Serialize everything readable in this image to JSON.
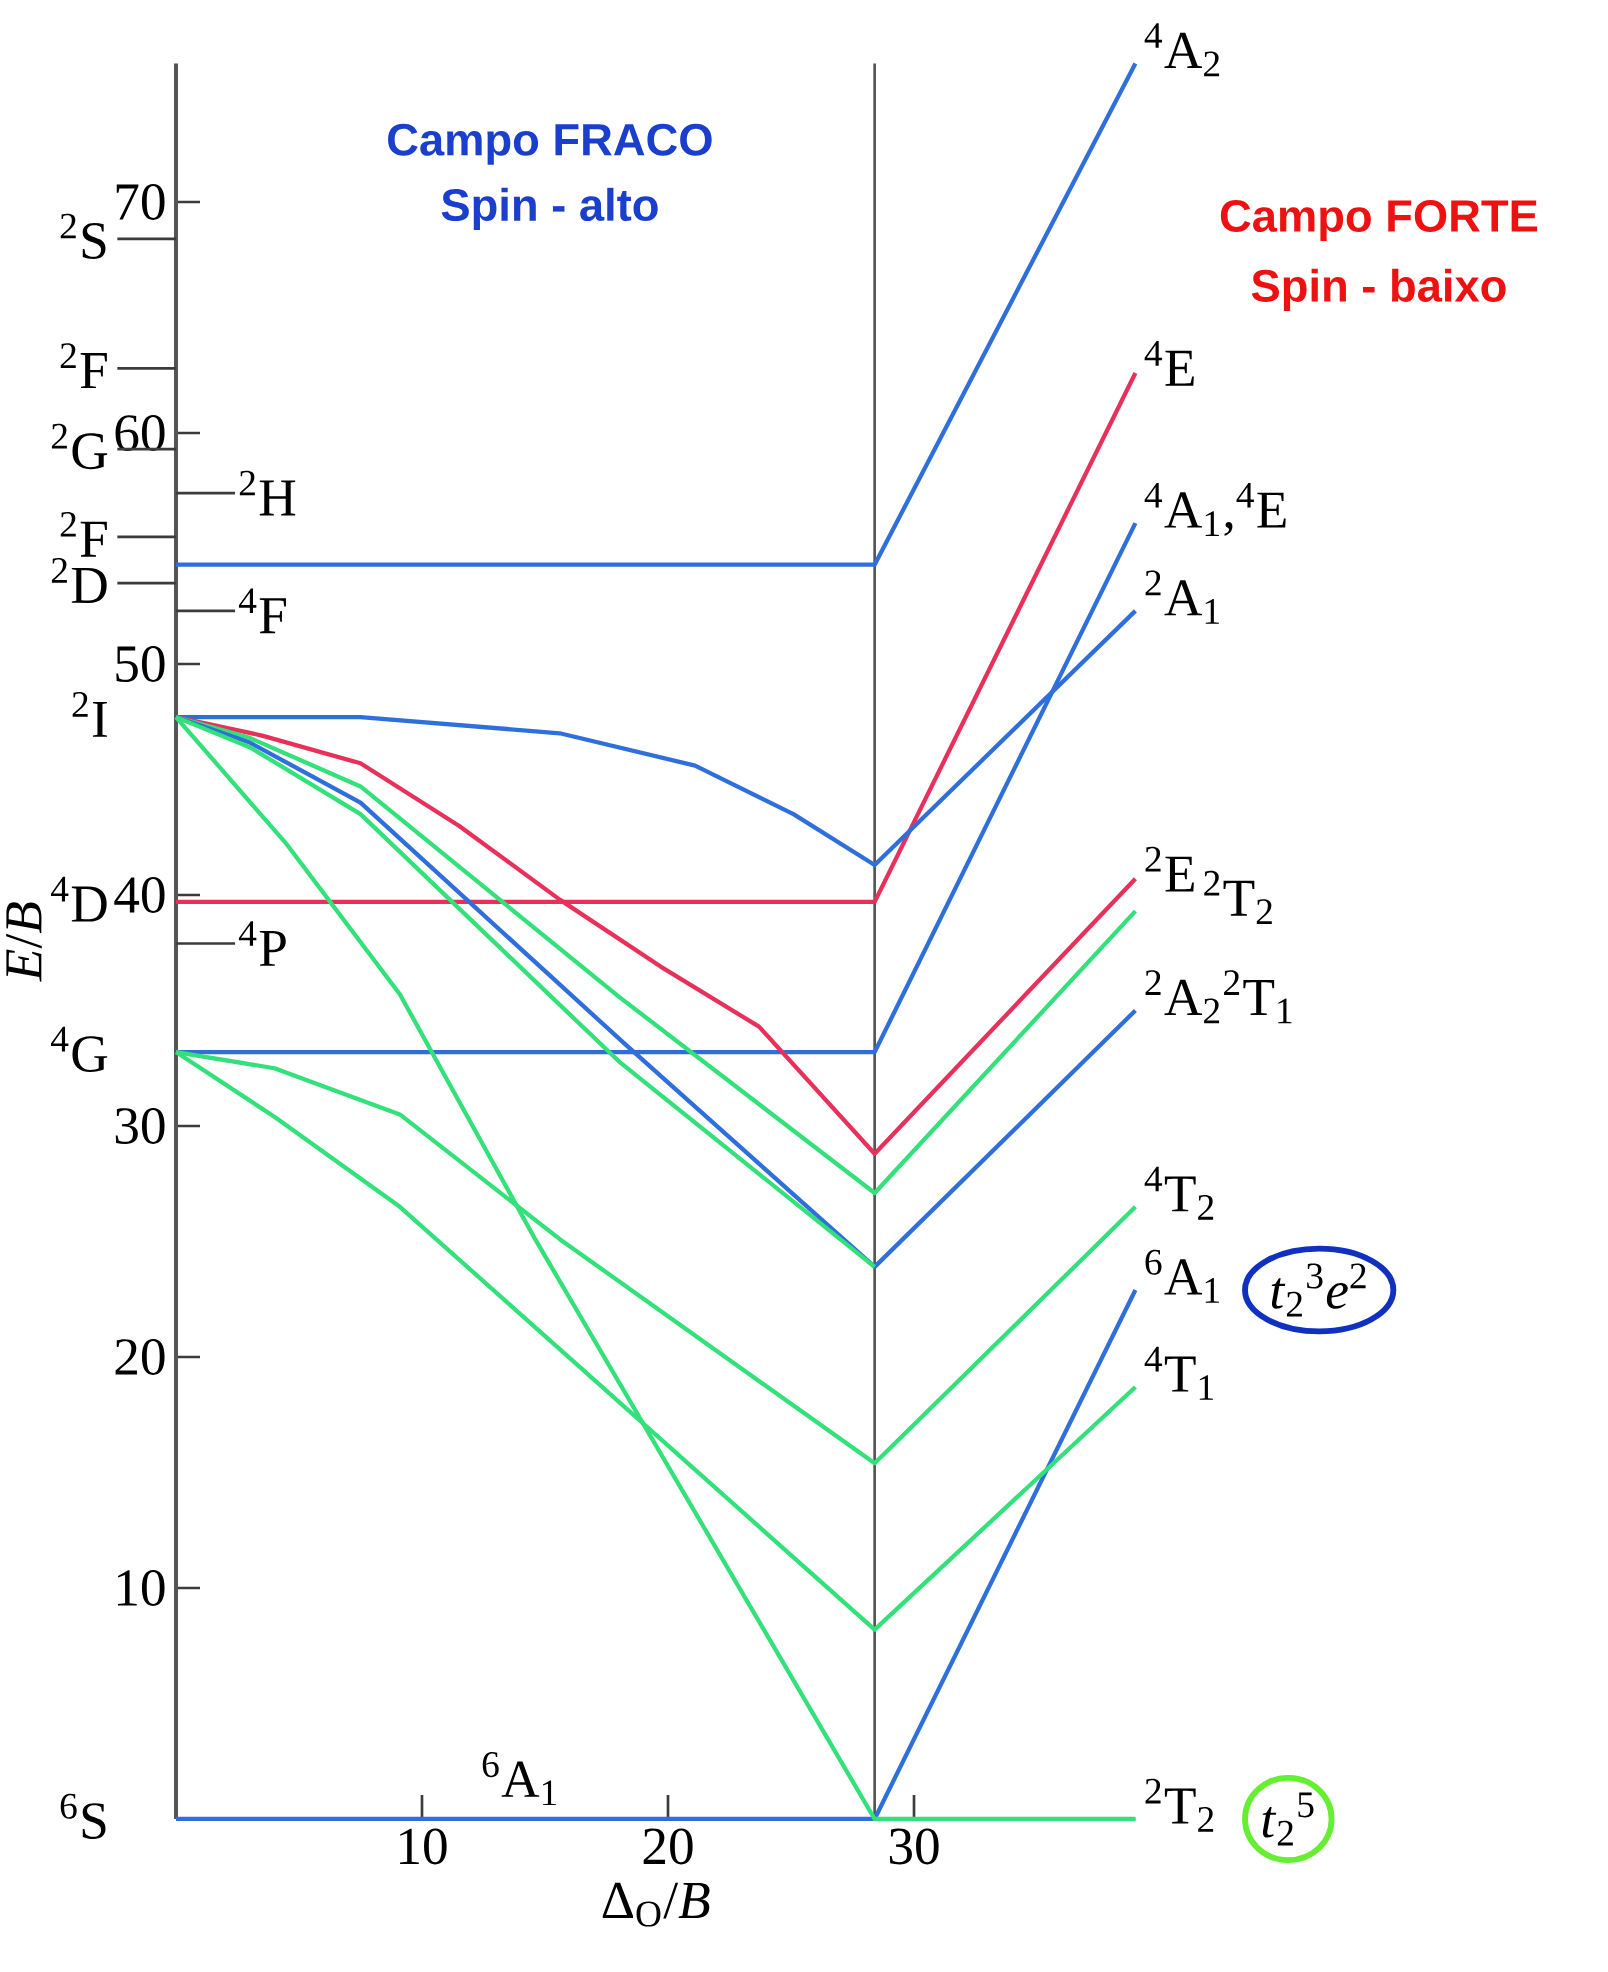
{
  "chart_data": {
    "type": "line",
    "xlabel": "Δ$_{O}$/*B*",
    "ylabel": "*E*/*B*",
    "xlim": [
      0,
      39
    ],
    "ylim": [
      0,
      76
    ],
    "xticks": [
      10,
      20,
      30
    ],
    "yticks": [
      10,
      20,
      30,
      40,
      50,
      60,
      70
    ],
    "ref_lines": [
      {
        "axis": "x",
        "value": 28.4,
        "color": "#555555"
      }
    ],
    "series": [
      {
        "name": "$^{4}$A$_{2}$",
        "color": "#2f6fdc",
        "x": [
          0,
          28.4,
          39
        ],
        "values": [
          54.3,
          54.3,
          76
        ]
      },
      {
        "name": "$^{4}$E",
        "color": "#e8315a",
        "x": [
          0,
          28.4,
          39
        ],
        "values": [
          39.7,
          39.7,
          62.6
        ]
      },
      {
        "name": "$^{4}$A$_{1}$,$^{4}$E",
        "color": "#2f6fdc",
        "x": [
          0,
          28.4,
          39
        ],
        "values": [
          33.2,
          33.2,
          56.1
        ]
      },
      {
        "name": "$^{2}$A$_{1}$",
        "color": "#2f6fdc",
        "x": [
          0,
          7.5,
          15.6,
          21.1,
          25.1,
          28.4,
          39
        ],
        "values": [
          47.7,
          47.7,
          47.0,
          45.6,
          43.5,
          41.3,
          52.3
        ]
      },
      {
        "name": "$^{2}$E",
        "color": "#e8315a",
        "x": [
          0,
          3.5,
          7.5,
          11.5,
          15.6,
          19.7,
          23.7,
          28.4,
          39
        ],
        "values": [
          47.7,
          46.9,
          45.7,
          43.0,
          39.8,
          36.9,
          34.3,
          28.8,
          40.7
        ]
      },
      {
        "name": "$^{2}$T$_{2}$",
        "color": "#33e07a",
        "x": [
          0,
          3,
          7.5,
          18,
          28.4,
          39
        ],
        "values": [
          47.7,
          46.8,
          44.7,
          35.6,
          27.1,
          39.3
        ]
      },
      {
        "name": "$^{2}$A$_{2}$$^{2}$T$_{1}$",
        "color": "#2f6fdc",
        "x": [
          0,
          3,
          7.5,
          18.3,
          28.4,
          39
        ],
        "values": [
          47.7,
          46.6,
          44.0,
          33.5,
          23.9,
          35.0
        ]
      },
      {
        "color": "#33e07a",
        "x": [
          0,
          3,
          7.5,
          18,
          28.4
        ],
        "values": [
          47.7,
          46.4,
          43.5,
          32.8,
          23.9
        ]
      },
      {
        "name": "$^{4}$T$_{2}$",
        "color": "#33e07a",
        "x": [
          0,
          4,
          9.1,
          15.6,
          28.4,
          39
        ],
        "values": [
          33.2,
          32.5,
          30.5,
          25.1,
          15.4,
          26.5
        ]
      },
      {
        "name": "$^{6}$A$_{1}$",
        "color": "#2f6fdc",
        "x": [
          0,
          28.4,
          39
        ],
        "values": [
          0,
          0,
          22.9
        ]
      },
      {
        "name": "$^{4}$T$_{1}$",
        "color": "#33e07a",
        "x": [
          0,
          4,
          9.1,
          28.4,
          39
        ],
        "values": [
          33.2,
          30.4,
          26.5,
          8.2,
          18.7
        ]
      },
      {
        "name": "$^{2}$T$_{2}$",
        "color": "#33e07a",
        "x": [
          0,
          4.5,
          9.1,
          14.6,
          28.4,
          39
        ],
        "values": [
          47.7,
          42.2,
          35.7,
          25.1,
          0,
          0
        ]
      }
    ],
    "annotations": [
      "Campo FRACO",
      "Spin - alto",
      "Campo FORTE",
      "Spin - baixo",
      "$^{2}$S",
      "$^{2}$F",
      "$^{2}$G",
      "$^{2}$F",
      "$^{2}$D",
      "$^{2}$H",
      "$^{4}$F",
      "$^{4}$P",
      "$^{6}$A$_{1}$",
      "*t*$_{2}$$^{3}$*e*$^{2}$",
      "*t*$_{2}$$^{5}$",
      "$^{2}$I",
      "$^{4}$D",
      "$^{4}$G",
      "$^{6}$S"
    ]
  }
}
